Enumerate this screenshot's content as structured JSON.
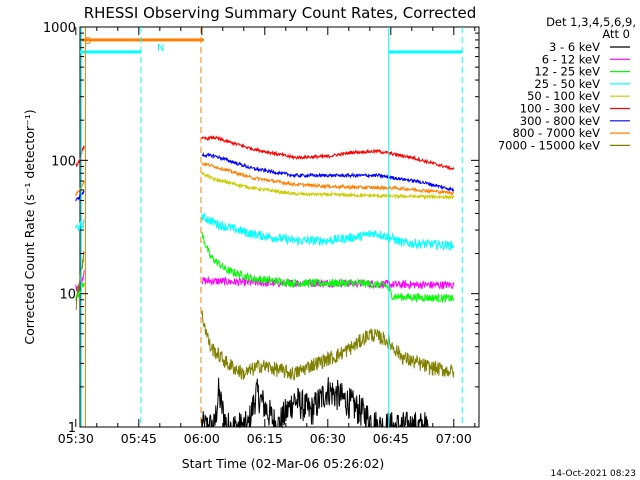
{
  "chart_data": {
    "type": "line",
    "title": "RHESSI Observing Summary Count Rates, Corrected",
    "xlabel": "Start Time (02-Mar-06 05:26:02)",
    "ylabel": "Corrected Count Rate (s⁻¹ detector⁻¹)",
    "yscale": "log",
    "ylim": [
      1,
      1000
    ],
    "xlim_minutes": [
      5.0,
      100.0
    ],
    "x_ticks": [
      {
        "label": "05:30",
        "minutes": 4
      },
      {
        "label": "05:45",
        "minutes": 19
      },
      {
        "label": "06:00",
        "minutes": 34
      },
      {
        "label": "06:15",
        "minutes": 49
      },
      {
        "label": "06:30",
        "minutes": 64
      },
      {
        "label": "06:45",
        "minutes": 79
      },
      {
        "label": "07:00",
        "minutes": 94
      }
    ],
    "y_ticks": [
      {
        "label": "1",
        "value": 1
      },
      {
        "label": "10",
        "value": 10
      },
      {
        "label": "100",
        "value": 100
      },
      {
        "label": "1000",
        "value": 1000
      }
    ],
    "legend_header": [
      "Det 1,3,4,5,6,9,",
      "Att 0"
    ],
    "legend_position": "right",
    "footer_date": "14-Oct-2021 08:23",
    "flag_labels": [
      "S",
      "N"
    ],
    "series": [
      {
        "name": "3 - 6 keV",
        "color": "#000000",
        "segments": [
          [
            [
              34,
              1
            ],
            [
              37,
              1
            ],
            [
              38,
              1.8
            ],
            [
              39,
              1.3
            ],
            [
              40,
              1
            ],
            [
              45,
              1
            ],
            [
              47,
              1.8
            ],
            [
              52,
              1
            ],
            [
              56,
              1.6
            ],
            [
              60,
              1.3
            ],
            [
              64,
              1.9
            ],
            [
              68,
              1.6
            ],
            [
              72,
              1.3
            ],
            [
              76,
              1
            ],
            [
              82,
              1
            ],
            [
              88,
              1
            ]
          ]
        ],
        "noise": 0.12
      },
      {
        "name": "6 - 12 keV",
        "color": "#ff00ff",
        "segments": [
          [
            [
              4.0,
              11
            ],
            [
              5.6,
              13
            ],
            [
              6.0,
              15
            ]
          ],
          [
            [
              34,
              12.5
            ],
            [
              50,
              12
            ],
            [
              70,
              12
            ],
            [
              80,
              11.7
            ],
            [
              94,
              11.6
            ]
          ]
        ],
        "noise": 0.03
      },
      {
        "name": "12 - 25 keV",
        "color": "#00ff00",
        "segments": [
          [
            [
              4.0,
              9
            ],
            [
              5.2,
              11
            ],
            [
              6.0,
              12
            ]
          ],
          [
            [
              34,
              28
            ],
            [
              36,
              19
            ],
            [
              40,
              15
            ],
            [
              46,
              13
            ],
            [
              56,
              12
            ],
            [
              72,
              12
            ],
            [
              78,
              11.5
            ],
            [
              79.5,
              9.5
            ],
            [
              94,
              9.2
            ]
          ]
        ],
        "noise": 0.03
      },
      {
        "name": "25 - 50 keV",
        "color": "#00ffff",
        "segments": [
          [
            [
              4.0,
              31
            ],
            [
              5.4,
              32
            ],
            [
              6.0,
              34
            ]
          ],
          [
            [
              34,
              38
            ],
            [
              38,
              33
            ],
            [
              46,
              28
            ],
            [
              56,
              25
            ],
            [
              64,
              25
            ],
            [
              72,
              27
            ],
            [
              75,
              28.5
            ],
            [
              78,
              27
            ],
            [
              82,
              24
            ],
            [
              94,
              23
            ]
          ]
        ],
        "noise": 0.035
      },
      {
        "name": "50 - 100 keV",
        "color": "#cccc00",
        "segments": [
          [
            [
              34,
              80
            ],
            [
              37,
              72
            ],
            [
              46,
              62
            ],
            [
              56,
              56
            ],
            [
              68,
              55
            ],
            [
              78,
              54
            ],
            [
              94,
              53
            ]
          ]
        ],
        "noise": 0.012
      },
      {
        "name": "100 - 300 keV",
        "color": "#ff0000",
        "segments": [
          [
            [
              4.0,
              90
            ],
            [
              5.0,
              100
            ],
            [
              5.5,
              120
            ],
            [
              6.0,
              128
            ]
          ],
          [
            [
              34,
              145
            ],
            [
              37,
              148
            ],
            [
              46,
              122
            ],
            [
              56,
              105
            ],
            [
              64,
              107
            ],
            [
              70,
              115
            ],
            [
              76,
              117
            ],
            [
              84,
              105
            ],
            [
              94,
              86
            ]
          ]
        ],
        "noise": 0.012
      },
      {
        "name": "300 - 800 keV",
        "color": "#0000ff",
        "segments": [
          [
            [
              4.0,
              50
            ],
            [
              5.2,
              55
            ],
            [
              6.0,
              58
            ]
          ],
          [
            [
              34,
              110
            ],
            [
              37,
              108
            ],
            [
              46,
              87
            ],
            [
              56,
              77
            ],
            [
              66,
              77
            ],
            [
              76,
              77
            ],
            [
              86,
              69
            ],
            [
              94,
              60
            ]
          ]
        ],
        "noise": 0.012
      },
      {
        "name": "800 - 7000 keV",
        "color": "#ff8000",
        "segments": [
          [
            [
              4.0,
              55
            ],
            [
              5.0,
              62
            ],
            [
              5.6,
              65
            ],
            [
              6.0,
              70
            ]
          ],
          [
            [
              34,
              95
            ],
            [
              37,
              90
            ],
            [
              46,
              74
            ],
            [
              56,
              66
            ],
            [
              68,
              63
            ],
            [
              80,
              62
            ],
            [
              94,
              57
            ]
          ]
        ],
        "noise": 0.012
      },
      {
        "name": "7000 - 15000 keV",
        "color": "#808000",
        "segments": [
          [
            [
              4.0,
              8
            ],
            [
              5.2,
              15
            ],
            [
              6.0,
              20
            ]
          ],
          [
            [
              34,
              7
            ],
            [
              36,
              4
            ],
            [
              40,
              3
            ],
            [
              44,
              2.5
            ],
            [
              48,
              2.9
            ],
            [
              56,
              2.5
            ],
            [
              60,
              2.9
            ],
            [
              66,
              3.4
            ],
            [
              70,
              4
            ],
            [
              74,
              5
            ],
            [
              78,
              4.5
            ],
            [
              82,
              3.3
            ],
            [
              88,
              2.8
            ],
            [
              94,
              2.6
            ]
          ]
        ],
        "noise": 0.055
      }
    ],
    "flags": [
      {
        "name": "S",
        "color": "#ff8000",
        "value": 800,
        "x_start_minutes": 5.5,
        "x_end_minutes": 34.5
      },
      {
        "name": "N",
        "color": "#00ffff",
        "value": 650,
        "x_start_minutes": 0,
        "x_end_minutes": 19.5
      },
      {
        "name": "N",
        "color": "#00ffff",
        "value": 650,
        "x_start_minutes": 78.5,
        "x_end_minutes": 96
      }
    ],
    "vertical_markers": [
      {
        "color": "#00ffff",
        "style": "solid",
        "minutes": 5.3
      },
      {
        "color": "#ff8000",
        "style": "solid",
        "minutes": 6.3
      },
      {
        "color": "#00ffff",
        "style": "dashed",
        "minutes": 19.5
      },
      {
        "color": "#ff8000",
        "style": "dashed",
        "minutes": 33.8
      },
      {
        "color": "#00ffff",
        "style": "solid",
        "minutes": 78.5
      },
      {
        "color": "#00ffff",
        "style": "dashed",
        "minutes": 96.0
      }
    ]
  }
}
